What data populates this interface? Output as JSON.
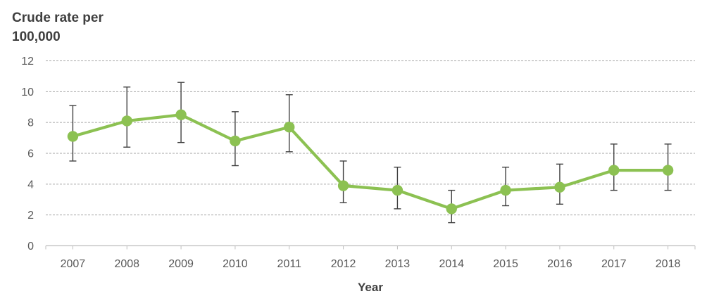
{
  "title": {
    "line1": "Crude rate per",
    "line2": "100,000"
  },
  "x_axis_title": "Year",
  "chart_data": {
    "type": "line",
    "title": "Crude rate per 100,000",
    "xlabel": "Year",
    "ylabel": "Crude rate per 100,000",
    "categories": [
      "2007",
      "2008",
      "2009",
      "2010",
      "2011",
      "2012",
      "2013",
      "2014",
      "2015",
      "2016",
      "2017",
      "2018"
    ],
    "series": [
      {
        "name": "Crude rate per 100,000",
        "values": [
          7.1,
          8.1,
          8.5,
          6.8,
          7.7,
          3.9,
          3.6,
          2.4,
          3.6,
          3.8,
          4.9,
          4.9
        ],
        "ci_lower": [
          5.5,
          6.4,
          6.7,
          5.2,
          6.1,
          2.8,
          2.4,
          1.5,
          2.6,
          2.7,
          3.6,
          3.6
        ],
        "ci_upper": [
          9.1,
          10.3,
          10.6,
          8.7,
          9.8,
          5.5,
          5.1,
          3.6,
          5.1,
          5.3,
          6.6,
          6.6
        ]
      }
    ],
    "ylim": [
      0,
      12
    ],
    "yticks": [
      0,
      2,
      4,
      6,
      8,
      10,
      12
    ],
    "grid": "horizontal-dashed",
    "legend": "none",
    "error_bars": true,
    "marker": "circle",
    "colors": {
      "series": "#8CC152",
      "error_bar": "#404040",
      "gridline": "#A6A6A6",
      "axis": "#BFBFBF",
      "tick_label": "#595959",
      "title": "#3F3F3F"
    }
  }
}
